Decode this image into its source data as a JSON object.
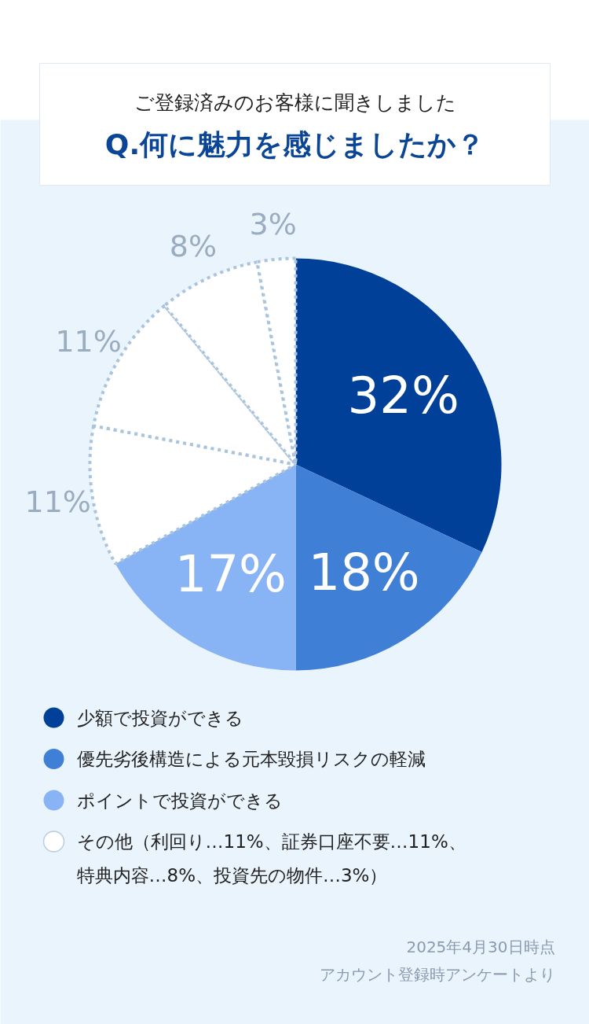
{
  "chart_data": {
    "type": "pie",
    "title": "ご登録済みのお客様に聞きしました",
    "subtitle": "Q.何に魅力を感じましたか？",
    "categories": [
      "少額で投資ができる",
      "優先劣後構造による元本毀損リスクの軽減",
      "ポイントで投資ができる",
      null,
      null,
      null,
      null
    ],
    "values": [
      32,
      18,
      17,
      11,
      11,
      8,
      3
    ],
    "colors": [
      "#004098",
      "#3f7fd6",
      "#88b4f6",
      "#ffffff",
      "#ffffff",
      "#ffffff",
      "#ffffff"
    ],
    "value_labels": [
      "32%",
      "18%",
      "17%",
      "11%",
      "11%",
      "8%",
      "3%"
    ],
    "legend": "bottom",
    "annotations": [
      "その他（利回り…11%、証券口座不要…11%、特典内容…8%、投資先の物件…3%）",
      "2025年4月30日時点",
      "アカウント登録時アンケートより"
    ]
  }
}
